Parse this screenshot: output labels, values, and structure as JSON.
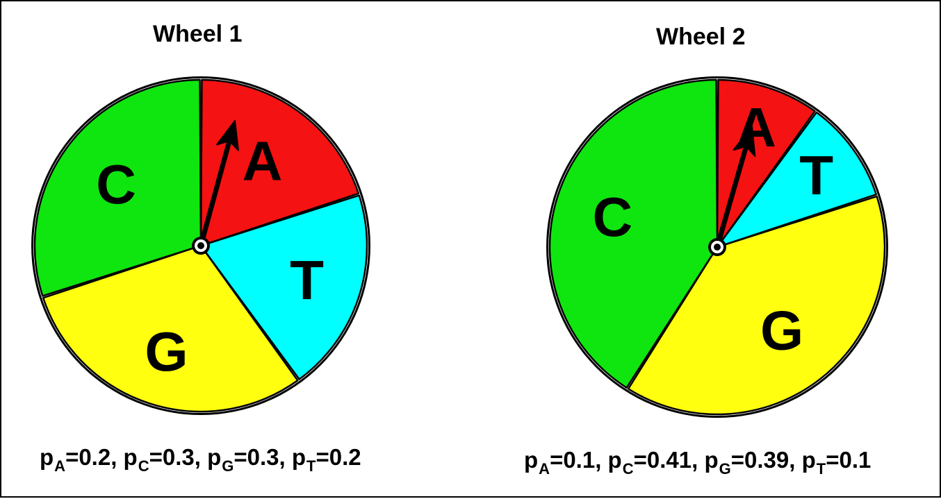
{
  "wheels": [
    {
      "title": "Wheel 1",
      "slices": [
        {
          "label": "A",
          "p": 0.2,
          "color": "#f51212"
        },
        {
          "label": "T",
          "p": 0.2,
          "color": "#00ffff"
        },
        {
          "label": "G",
          "p": 0.3,
          "color": "#ffff0f"
        },
        {
          "label": "C",
          "p": 0.3,
          "color": "#0fe60f"
        }
      ],
      "caption": [
        {
          "sym": "p",
          "sub": "A",
          "val": "=0.2, "
        },
        {
          "sym": "p",
          "sub": "C",
          "val": "=0.3, "
        },
        {
          "sym": "p",
          "sub": "G",
          "val": "=0.3, "
        },
        {
          "sym": "p",
          "sub": "T",
          "val": "=0.2"
        }
      ]
    },
    {
      "title": "Wheel 2",
      "slices": [
        {
          "label": "A",
          "p": 0.1,
          "color": "#f51212"
        },
        {
          "label": "T",
          "p": 0.1,
          "color": "#00ffff"
        },
        {
          "label": "G",
          "p": 0.39,
          "color": "#ffff0f"
        },
        {
          "label": "C",
          "p": 0.41,
          "color": "#0fe60f"
        }
      ],
      "caption": [
        {
          "sym": "p",
          "sub": "A",
          "val": "=0.1, "
        },
        {
          "sym": "p",
          "sub": "C",
          "val": "=0.41, "
        },
        {
          "sym": "p",
          "sub": "G",
          "val": "=0.39, "
        },
        {
          "sym": "p",
          "sub": "T",
          "val": "=0.1"
        }
      ]
    }
  ],
  "colors": {
    "outline": "#000000",
    "background": "#ffffff"
  }
}
